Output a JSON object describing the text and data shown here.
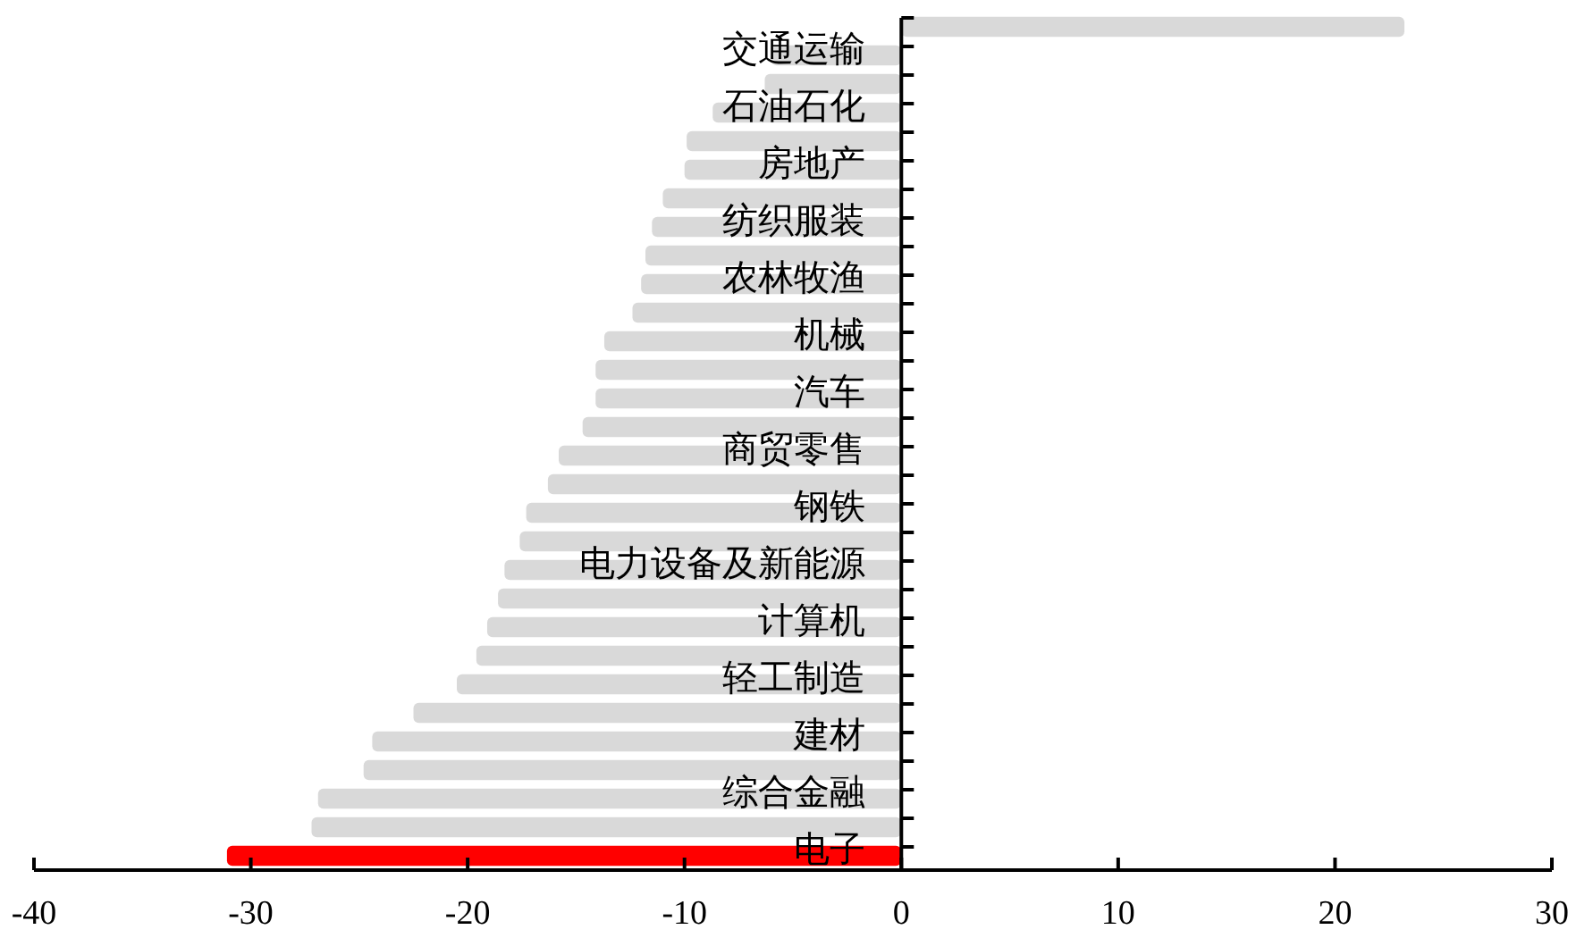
{
  "chart_data": {
    "type": "bar",
    "orientation": "horizontal",
    "categories": [
      null,
      "交通运输",
      null,
      "石油石化",
      null,
      "房地产",
      null,
      "纺织服装",
      null,
      "农林牧渔",
      null,
      "机械",
      null,
      "汽车",
      null,
      "商贸零售",
      null,
      "钢铁",
      null,
      "电力设备及新能源",
      null,
      "计算机",
      null,
      "轻工制造",
      null,
      "建材",
      null,
      "综合金融",
      null,
      "电子"
    ],
    "values": [
      23.2,
      -6.0,
      -6.3,
      -8.7,
      -9.9,
      -10.0,
      -11.0,
      -11.5,
      -11.8,
      -12.0,
      -12.4,
      -13.7,
      -14.1,
      -14.1,
      -14.7,
      -15.8,
      -16.3,
      -17.3,
      -17.6,
      -18.3,
      -18.6,
      -19.1,
      -19.6,
      -20.5,
      -22.5,
      -24.4,
      -24.8,
      -26.9,
      -27.2,
      -31.1
    ],
    "colors": [
      "#d9d9d9",
      "#d9d9d9",
      "#d9d9d9",
      "#d9d9d9",
      "#d9d9d9",
      "#d9d9d9",
      "#d9d9d9",
      "#d9d9d9",
      "#d9d9d9",
      "#d9d9d9",
      "#d9d9d9",
      "#d9d9d9",
      "#d9d9d9",
      "#d9d9d9",
      "#d9d9d9",
      "#d9d9d9",
      "#d9d9d9",
      "#d9d9d9",
      "#d9d9d9",
      "#d9d9d9",
      "#d9d9d9",
      "#d9d9d9",
      "#d9d9d9",
      "#d9d9d9",
      "#d9d9d9",
      "#d9d9d9",
      "#d9d9d9",
      "#d9d9d9",
      "#d9d9d9",
      "#ff0000"
    ],
    "xlim": [
      -40,
      30
    ],
    "xticks": [
      -40,
      -30,
      -20,
      -10,
      0,
      10,
      20,
      30
    ],
    "grid": false
  }
}
